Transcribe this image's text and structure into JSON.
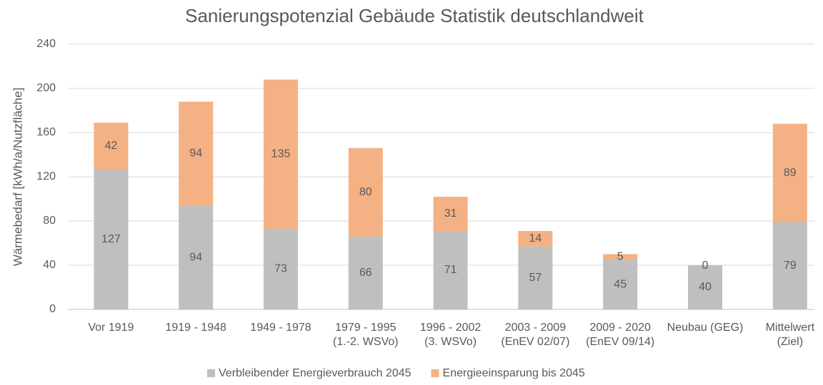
{
  "chart_data": {
    "type": "stacked_bar",
    "title": "Sanierungspotenzial Gebäude Statistik deutschlandweit",
    "y_axis_label": "Wärmebedarf [kWh/a/Nutzfläche]",
    "categories": [
      "Vor 1919",
      "1919 - 1948",
      "1949 - 1978",
      "1979 - 1995\n(1.-2. WSVo)",
      "1996 - 2002\n(3. WSVo)",
      "2003 - 2009\n(EnEV 02/07)",
      "2009 - 2020\n(EnEV 09/14)",
      "Neubau (GEG)",
      "Mittelwert\n(Ziel)"
    ],
    "series": [
      {
        "name": "Verbleibender Energieverbrauch 2045",
        "color": "#bfbfbf",
        "values": [
          127,
          94,
          73,
          66,
          71,
          57,
          45,
          40,
          79
        ]
      },
      {
        "name": "Energieeinsparung bis 2045",
        "color": "#f4b183",
        "values": [
          42,
          94,
          135,
          80,
          31,
          14,
          5,
          0,
          89
        ]
      }
    ],
    "ylim": [
      0,
      240
    ],
    "yticks": [
      0,
      40,
      80,
      120,
      160,
      200,
      240
    ],
    "grid": true,
    "legend": "bottom"
  }
}
